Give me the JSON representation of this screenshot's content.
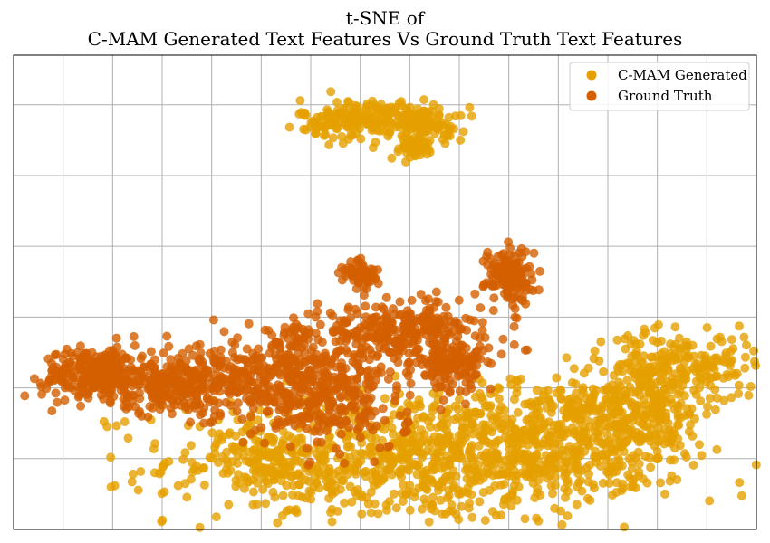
{
  "chart_data": {
    "type": "scatter",
    "title": "t-SNE of",
    "subtitle": "C-MAM Generated Text Features Vs Ground Truth Text Features",
    "xlabel": "",
    "ylabel": "",
    "xlim": [
      -80,
      70
    ],
    "ylim": [
      -20,
      47
    ],
    "grid": true,
    "ticks_labeled": false,
    "legend_position": "top-right",
    "series": [
      {
        "name": "C-MAM Generated",
        "color": "#e5a000",
        "clusters": [
          {
            "center": [
              0,
              -10
            ],
            "spread": [
              24,
              4.6
            ],
            "count": 880
          },
          {
            "center": [
              27,
              -7
            ],
            "spread": [
              11,
              4
            ],
            "count": 300
          },
          {
            "center": [
              46,
              -3
            ],
            "spread": [
              7,
              4.5
            ],
            "count": 340
          },
          {
            "center": [
              56,
              3
            ],
            "spread": [
              7,
              2.3
            ],
            "count": 170
          },
          {
            "center": [
              -29,
              -10
            ],
            "spread": [
              5,
              2.2
            ],
            "count": 100
          },
          {
            "center": [
              -8,
              38
            ],
            "spread": [
              7,
              1.4
            ],
            "count": 230
          },
          {
            "center": [
              4,
              37
            ],
            "spread": [
              3.5,
              1.2
            ],
            "count": 60
          },
          {
            "center": [
              0.5,
              34
            ],
            "spread": [
              2.4,
              0.9
            ],
            "count": 50
          }
        ]
      },
      {
        "name": "Ground Truth",
        "color": "#d35f00",
        "clusters": [
          {
            "center": [
              -63,
              2
            ],
            "spread": [
              5.5,
              1.8
            ],
            "count": 260
          },
          {
            "center": [
              -45,
              0.5
            ],
            "spread": [
              9,
              2.2
            ],
            "count": 300
          },
          {
            "center": [
              -22,
              1.5
            ],
            "spread": [
              9,
              3.5
            ],
            "count": 440
          },
          {
            "center": [
              -3,
              8
            ],
            "spread": [
              7,
              1.7
            ],
            "count": 170
          },
          {
            "center": [
              8,
              3
            ],
            "spread": [
              3.2,
              1.5
            ],
            "count": 110
          },
          {
            "center": [
              20,
              16
            ],
            "spread": [
              2.4,
              1.9
            ],
            "count": 150
          },
          {
            "center": [
              -10,
              16
            ],
            "spread": [
              1.8,
              1.1
            ],
            "count": 60
          },
          {
            "center": [
              -12,
              -4
            ],
            "spread": [
              6,
              2.5
            ],
            "count": 90
          },
          {
            "center": [
              5,
              7
            ],
            "spread": [
              9,
              3
            ],
            "count": 130
          }
        ]
      }
    ]
  }
}
